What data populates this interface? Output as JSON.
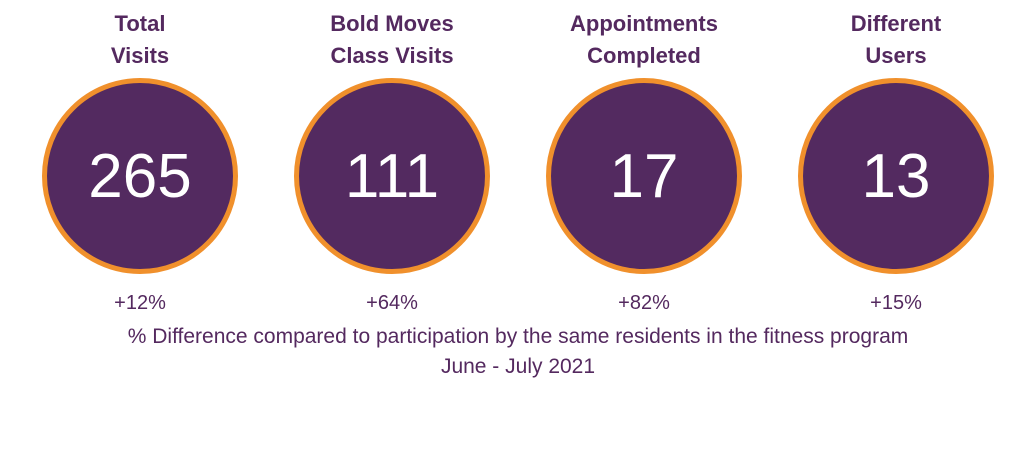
{
  "colors": {
    "accent": "#532a60",
    "ring": "#f0902c",
    "text": "#54295f"
  },
  "stats": [
    {
      "title": "Total\nVisits",
      "value": "265",
      "diff": "+12%"
    },
    {
      "title": "Bold Moves\nClass Visits",
      "value": "111",
      "diff": "+64%"
    },
    {
      "title": "Appointments\nCompleted",
      "value": "17",
      "diff": "+82%"
    },
    {
      "title": "Different\nUsers",
      "value": "13",
      "diff": "+15%"
    }
  ],
  "footnote": {
    "line1": "% Difference compared to participation by the same residents in the fitness program",
    "line2": "June - July 2021"
  }
}
